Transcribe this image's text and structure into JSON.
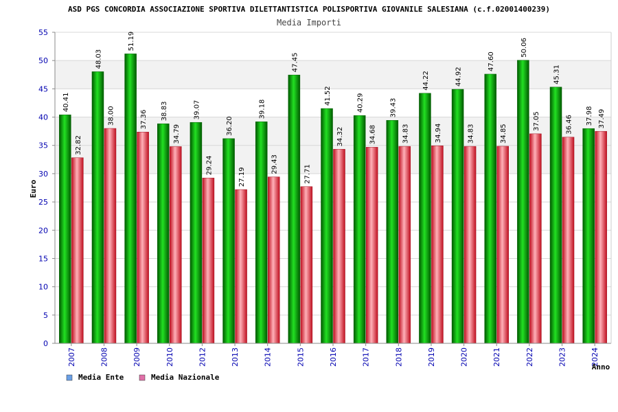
{
  "chart_data": {
    "type": "bar",
    "header": "ASD PGS CONCORDIA ASSOCIAZIONE SPORTIVA DILETTANTISTICA POLISPORTIVA GIOVANILE SALESIANA (c.f.02001400239)",
    "title": "Media Importi",
    "xlabel": "Anno",
    "ylabel": "Euro",
    "ylim": [
      0,
      55
    ],
    "yticks": [
      "0",
      "5",
      "10",
      "15",
      "20",
      "25",
      "30",
      "35",
      "40",
      "45",
      "50",
      "55"
    ],
    "categories": [
      "2007",
      "2008",
      "2009",
      "2010",
      "2012",
      "2013",
      "2014",
      "2015",
      "2016",
      "2017",
      "2018",
      "2019",
      "2020",
      "2021",
      "2022",
      "2023",
      "2024"
    ],
    "series": [
      {
        "name": "Media Ente",
        "values": [
          40.41,
          48.03,
          51.19,
          38.83,
          39.07,
          36.2,
          39.18,
          47.45,
          41.52,
          40.29,
          39.43,
          44.22,
          44.92,
          47.6,
          50.06,
          45.31,
          37.98
        ],
        "labels": [
          "40.41",
          "48.03",
          "51.19",
          "38.83",
          "39.07",
          "36.20",
          "39.18",
          "47.45",
          "41.52",
          "40.29",
          "39.43",
          "44.22",
          "44.92",
          "47.60",
          "50.06",
          "45.31",
          "37.98"
        ]
      },
      {
        "name": "Media Nazionale",
        "values": [
          32.82,
          38.0,
          37.36,
          34.79,
          29.24,
          27.19,
          29.43,
          27.71,
          34.32,
          34.68,
          34.83,
          34.94,
          34.83,
          34.85,
          37.05,
          36.46,
          37.49
        ],
        "labels": [
          "32.82",
          "38.00",
          "37.36",
          "34.79",
          "29.24",
          "27.19",
          "29.43",
          "27.71",
          "34.32",
          "34.68",
          "34.83",
          "34.94",
          "34.83",
          "34.85",
          "37.05",
          "36.46",
          "37.49"
        ]
      }
    ],
    "legend": [
      {
        "label": "Media Ente",
        "swatch": "#6aa0e6"
      },
      {
        "label": "Media Nazionale",
        "swatch": "#e070a8"
      }
    ],
    "colors": {
      "green": "#00b400",
      "red": "#e8283c",
      "axis_text": "#0000b0",
      "band": "#f2f2f2",
      "grid": "#d8d8d8"
    }
  }
}
